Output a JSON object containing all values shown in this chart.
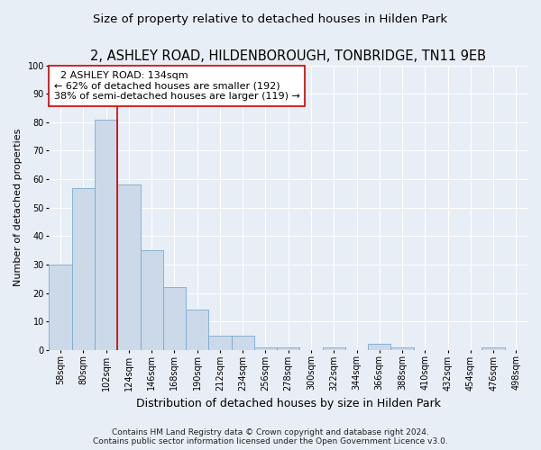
{
  "title": "2, ASHLEY ROAD, HILDENBOROUGH, TONBRIDGE, TN11 9EB",
  "subtitle": "Size of property relative to detached houses in Hilden Park",
  "xlabel": "Distribution of detached houses by size in Hilden Park",
  "ylabel": "Number of detached properties",
  "bar_color": "#ccd9e8",
  "bar_edge_color": "#7aaacf",
  "bar_categories": [
    "58sqm",
    "80sqm",
    "102sqm",
    "124sqm",
    "146sqm",
    "168sqm",
    "190sqm",
    "212sqm",
    "234sqm",
    "256sqm",
    "278sqm",
    "300sqm",
    "322sqm",
    "344sqm",
    "366sqm",
    "388sqm",
    "410sqm",
    "432sqm",
    "454sqm",
    "476sqm",
    "498sqm"
  ],
  "bar_values": [
    30,
    57,
    81,
    58,
    35,
    22,
    14,
    5,
    5,
    1,
    1,
    0,
    1,
    0,
    2,
    1,
    0,
    0,
    0,
    1,
    0
  ],
  "vline_x": 2.5,
  "vline_color": "#cc0000",
  "annotation_text": "  2 ASHLEY ROAD: 134sqm\n← 62% of detached houses are smaller (192)\n38% of semi-detached houses are larger (119) →",
  "annotation_box_color": "#ffffff",
  "annotation_box_edge": "#cc0000",
  "ylim": [
    0,
    100
  ],
  "yticks": [
    0,
    10,
    20,
    30,
    40,
    50,
    60,
    70,
    80,
    90,
    100
  ],
  "background_color": "#e8eef5",
  "axes_background": "#e8eef5",
  "grid_color": "#ffffff",
  "footer": "Contains HM Land Registry data © Crown copyright and database right 2024.\nContains public sector information licensed under the Open Government Licence v3.0.",
  "title_fontsize": 10.5,
  "subtitle_fontsize": 9.5,
  "xlabel_fontsize": 9,
  "ylabel_fontsize": 8,
  "tick_fontsize": 7,
  "annotation_fontsize": 8,
  "footer_fontsize": 6.5
}
